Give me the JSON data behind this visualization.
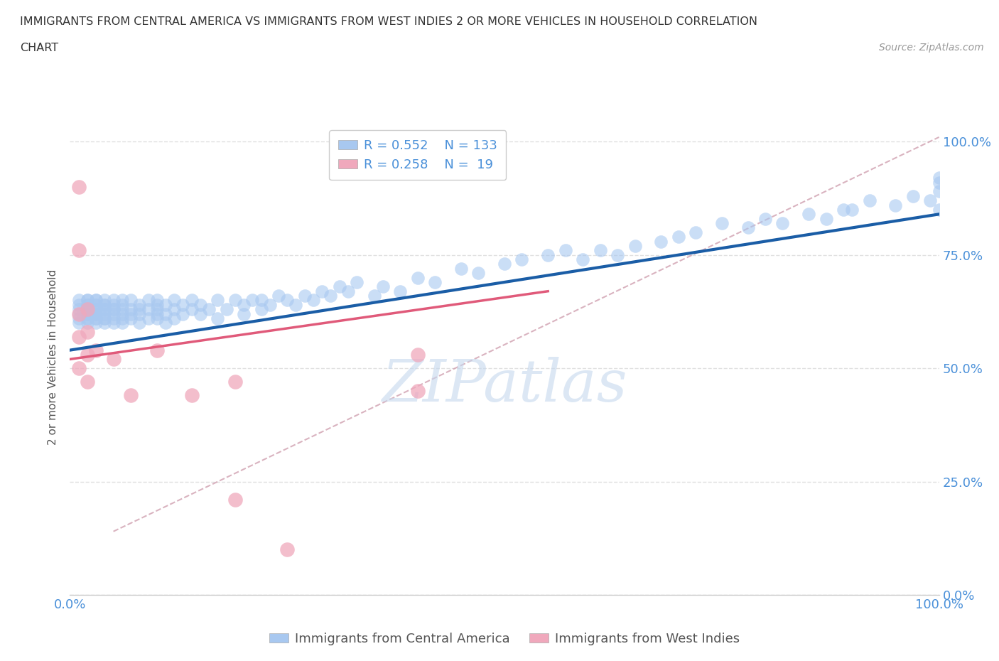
{
  "title_line1": "IMMIGRANTS FROM CENTRAL AMERICA VS IMMIGRANTS FROM WEST INDIES 2 OR MORE VEHICLES IN HOUSEHOLD CORRELATION",
  "title_line2": "CHART",
  "source": "Source: ZipAtlas.com",
  "ylabel": "2 or more Vehicles in Household",
  "xticklabels": [
    "0.0%",
    "100.0%"
  ],
  "yticklabels": [
    "0.0%",
    "25.0%",
    "50.0%",
    "75.0%",
    "100.0%"
  ],
  "legend_blue_R": "0.552",
  "legend_blue_N": "133",
  "legend_pink_R": "0.258",
  "legend_pink_N": "19",
  "legend_label_blue": "Immigrants from Central America",
  "legend_label_pink": "Immigrants from West Indies",
  "blue_color": "#a8c8f0",
  "pink_color": "#f0a8bc",
  "blue_line_color": "#1a5da6",
  "pink_line_color": "#e05a7a",
  "dashed_line_color": "#d0a0b0",
  "watermark": "ZIPatlas",
  "background_color": "#ffffff",
  "grid_color": "#e0e0e0",
  "xlim": [
    0.0,
    1.0
  ],
  "ylim": [
    0.0,
    1.05
  ],
  "blue_scatter_x": [
    0.01,
    0.01,
    0.01,
    0.01,
    0.01,
    0.01,
    0.02,
    0.02,
    0.02,
    0.02,
    0.02,
    0.02,
    0.02,
    0.02,
    0.02,
    0.02,
    0.02,
    0.03,
    0.03,
    0.03,
    0.03,
    0.03,
    0.03,
    0.03,
    0.03,
    0.03,
    0.03,
    0.03,
    0.04,
    0.04,
    0.04,
    0.04,
    0.04,
    0.04,
    0.04,
    0.04,
    0.04,
    0.05,
    0.05,
    0.05,
    0.05,
    0.05,
    0.05,
    0.05,
    0.06,
    0.06,
    0.06,
    0.06,
    0.06,
    0.06,
    0.07,
    0.07,
    0.07,
    0.07,
    0.08,
    0.08,
    0.08,
    0.08,
    0.09,
    0.09,
    0.09,
    0.1,
    0.1,
    0.1,
    0.1,
    0.1,
    0.11,
    0.11,
    0.11,
    0.12,
    0.12,
    0.12,
    0.13,
    0.13,
    0.14,
    0.14,
    0.15,
    0.15,
    0.16,
    0.17,
    0.17,
    0.18,
    0.19,
    0.2,
    0.2,
    0.21,
    0.22,
    0.22,
    0.23,
    0.24,
    0.25,
    0.26,
    0.27,
    0.28,
    0.29,
    0.3,
    0.31,
    0.32,
    0.33,
    0.35,
    0.36,
    0.38,
    0.4,
    0.42,
    0.45,
    0.47,
    0.5,
    0.52,
    0.55,
    0.57,
    0.59,
    0.61,
    0.63,
    0.65,
    0.68,
    0.7,
    0.72,
    0.75,
    0.78,
    0.8,
    0.82,
    0.85,
    0.87,
    0.89,
    0.9,
    0.92,
    0.95,
    0.97,
    0.99,
    1.0,
    1.0,
    1.0,
    1.0
  ],
  "blue_scatter_y": [
    0.62,
    0.64,
    0.63,
    0.65,
    0.6,
    0.61,
    0.63,
    0.65,
    0.62,
    0.61,
    0.64,
    0.63,
    0.62,
    0.65,
    0.6,
    0.61,
    0.64,
    0.63,
    0.62,
    0.64,
    0.61,
    0.65,
    0.63,
    0.62,
    0.64,
    0.6,
    0.61,
    0.65,
    0.63,
    0.61,
    0.64,
    0.62,
    0.65,
    0.63,
    0.6,
    0.61,
    0.64,
    0.63,
    0.65,
    0.61,
    0.64,
    0.62,
    0.6,
    0.63,
    0.64,
    0.62,
    0.61,
    0.65,
    0.63,
    0.6,
    0.63,
    0.65,
    0.61,
    0.62,
    0.64,
    0.62,
    0.6,
    0.63,
    0.65,
    0.63,
    0.61,
    0.62,
    0.64,
    0.61,
    0.65,
    0.63,
    0.62,
    0.64,
    0.6,
    0.65,
    0.63,
    0.61,
    0.64,
    0.62,
    0.65,
    0.63,
    0.62,
    0.64,
    0.63,
    0.65,
    0.61,
    0.63,
    0.65,
    0.64,
    0.62,
    0.65,
    0.63,
    0.65,
    0.64,
    0.66,
    0.65,
    0.64,
    0.66,
    0.65,
    0.67,
    0.66,
    0.68,
    0.67,
    0.69,
    0.66,
    0.68,
    0.67,
    0.7,
    0.69,
    0.72,
    0.71,
    0.73,
    0.74,
    0.75,
    0.76,
    0.74,
    0.76,
    0.75,
    0.77,
    0.78,
    0.79,
    0.8,
    0.82,
    0.81,
    0.83,
    0.82,
    0.84,
    0.83,
    0.85,
    0.85,
    0.87,
    0.86,
    0.88,
    0.87,
    0.89,
    0.92,
    0.85,
    0.91
  ],
  "pink_scatter_x": [
    0.01,
    0.01,
    0.01,
    0.01,
    0.01,
    0.02,
    0.02,
    0.02,
    0.02,
    0.03,
    0.05,
    0.07,
    0.1,
    0.14,
    0.19,
    0.19,
    0.25,
    0.4,
    0.4
  ],
  "pink_scatter_y": [
    0.9,
    0.76,
    0.62,
    0.57,
    0.5,
    0.63,
    0.58,
    0.53,
    0.47,
    0.54,
    0.52,
    0.44,
    0.54,
    0.44,
    0.21,
    0.47,
    0.1,
    0.45,
    0.53
  ],
  "blue_trendline_x": [
    0.0,
    1.0
  ],
  "blue_trendline_y": [
    0.54,
    0.84
  ],
  "pink_trendline_x": [
    0.0,
    0.55
  ],
  "pink_trendline_y": [
    0.52,
    0.67
  ],
  "dashed_trendline_x": [
    0.05,
    1.0
  ],
  "dashed_trendline_y": [
    0.14,
    1.01
  ]
}
